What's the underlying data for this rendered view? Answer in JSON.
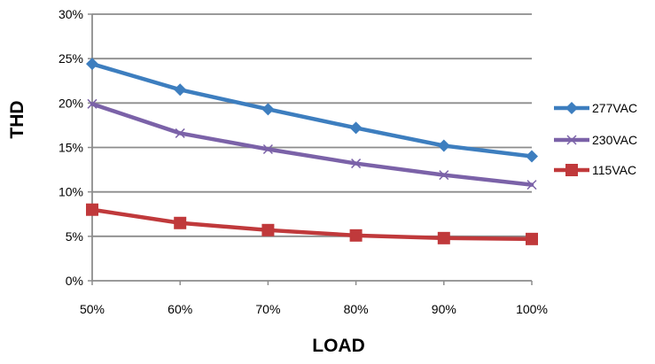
{
  "chart_data": {
    "type": "line",
    "title": "",
    "xlabel": "LOAD",
    "ylabel": "THD",
    "categories": [
      "50%",
      "60%",
      "70%",
      "80%",
      "90%",
      "100%"
    ],
    "y_tick_labels": [
      "0%",
      "5%",
      "10%",
      "15%",
      "20%",
      "25%",
      "30%"
    ],
    "ylim": [
      0,
      30
    ],
    "grid": "horizontal",
    "legend_position": "right",
    "series": [
      {
        "name": "277VAC",
        "color": "#3D7EBF",
        "marker": "diamond",
        "values": [
          24.4,
          21.5,
          19.3,
          17.2,
          15.2,
          14.0
        ]
      },
      {
        "name": "230VAC",
        "color": "#7B62A8",
        "marker": "x",
        "values": [
          19.9,
          16.6,
          14.8,
          13.2,
          11.9,
          10.8
        ]
      },
      {
        "name": "115VAC",
        "color": "#C0393B",
        "marker": "square",
        "values": [
          8.0,
          6.5,
          5.7,
          5.1,
          4.8,
          4.7
        ]
      }
    ]
  }
}
